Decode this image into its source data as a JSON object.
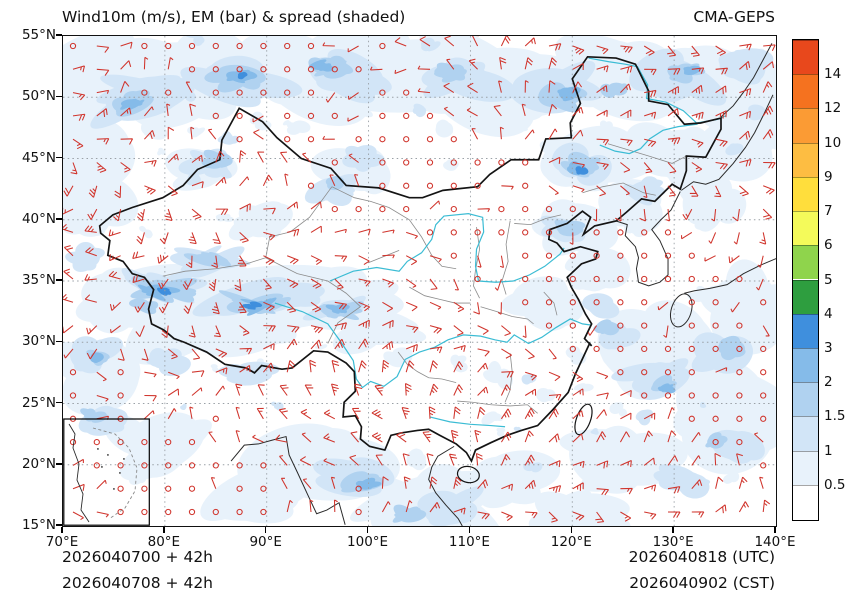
{
  "header": {
    "title": "Wind10m (m/s), EM (bar) & spread (shaded)",
    "model": "CMA-GEPS"
  },
  "map": {
    "x_ticks": [
      "70°E",
      "80°E",
      "90°E",
      "100°E",
      "110°E",
      "120°E",
      "130°E",
      "140°E"
    ],
    "y_ticks": [
      "55°N",
      "50°N",
      "45°N",
      "40°N",
      "35°N",
      "30°N",
      "25°N",
      "20°N",
      "15°N"
    ],
    "lon_range": [
      70,
      140
    ],
    "lat_range": [
      15,
      55
    ],
    "grid": true,
    "barb_color": "#d0342c",
    "river_color": "#3bbcd4",
    "border_color": "#141414",
    "province_color": "#8c8c8c"
  },
  "colorbar": {
    "levels": [
      "0.5",
      "1",
      "1.5",
      "2",
      "3",
      "4",
      "5",
      "6",
      "7",
      "9",
      "10",
      "12",
      "14"
    ],
    "colors": [
      "#ffffff",
      "#e8f2fb",
      "#d2e5f7",
      "#b0d2f0",
      "#85bbe9",
      "#3f8fdd",
      "#2e9e3f",
      "#8fd44c",
      "#f4fa5a",
      "#ffde3c",
      "#fdbd42",
      "#fb9b34",
      "#f5721f",
      "#e8481c"
    ]
  },
  "footer": {
    "left_line1": "2026040700 + 42h",
    "left_line2": "2026040708 + 42h",
    "right_line1": "2026040818 (UTC)",
    "right_line2": "2026040902 (CST)"
  }
}
